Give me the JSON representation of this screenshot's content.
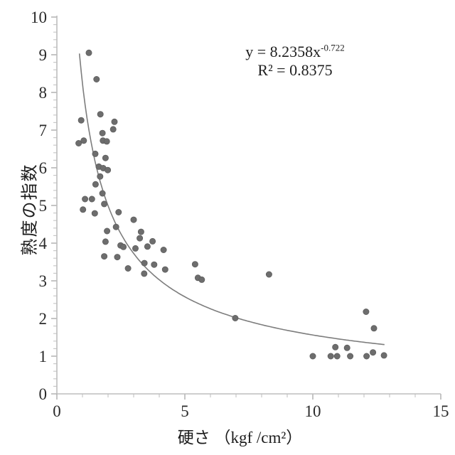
{
  "figure": {
    "background": "#ffffff"
  },
  "chart_data": {
    "type": "scatter",
    "title": "",
    "xlabel": "硬さ （kgf /cm²）",
    "ylabel": "熟度の指数",
    "xlim": [
      0,
      15
    ],
    "ylim": [
      0,
      10
    ],
    "x_ticks": [
      0,
      5,
      10,
      15
    ],
    "y_ticks": [
      0,
      1,
      2,
      3,
      4,
      5,
      6,
      7,
      8,
      9,
      10
    ],
    "x_minor_tick_step": 1,
    "y_minor_tick_step": 0.2,
    "grid": false,
    "legend": false,
    "points": [
      [
        1.25,
        9.05
      ],
      [
        1.55,
        8.35
      ],
      [
        1.7,
        7.42
      ],
      [
        0.95,
        7.26
      ],
      [
        2.25,
        7.22
      ],
      [
        2.2,
        7.02
      ],
      [
        1.78,
        6.92
      ],
      [
        0.85,
        6.65
      ],
      [
        1.05,
        6.72
      ],
      [
        1.8,
        6.72
      ],
      [
        1.95,
        6.7
      ],
      [
        1.5,
        6.37
      ],
      [
        1.9,
        6.26
      ],
      [
        1.64,
        6.03
      ],
      [
        1.81,
        5.99
      ],
      [
        1.99,
        5.94
      ],
      [
        1.69,
        5.77
      ],
      [
        1.51,
        5.56
      ],
      [
        1.78,
        5.32
      ],
      [
        1.1,
        5.17
      ],
      [
        1.37,
        5.17
      ],
      [
        1.85,
        5.04
      ],
      [
        1.02,
        4.89
      ],
      [
        1.48,
        4.79
      ],
      [
        2.41,
        4.82
      ],
      [
        3.0,
        4.62
      ],
      [
        2.31,
        4.43
      ],
      [
        1.96,
        4.32
      ],
      [
        3.29,
        4.3
      ],
      [
        3.24,
        4.13
      ],
      [
        1.9,
        4.04
      ],
      [
        2.49,
        3.94
      ],
      [
        2.6,
        3.9
      ],
      [
        3.07,
        3.86
      ],
      [
        3.54,
        3.91
      ],
      [
        3.74,
        4.05
      ],
      [
        4.17,
        3.82
      ],
      [
        1.85,
        3.65
      ],
      [
        2.36,
        3.63
      ],
      [
        3.42,
        3.47
      ],
      [
        2.78,
        3.33
      ],
      [
        3.41,
        3.19
      ],
      [
        3.8,
        3.43
      ],
      [
        4.23,
        3.3
      ],
      [
        5.4,
        3.44
      ],
      [
        5.51,
        3.08
      ],
      [
        5.66,
        3.03
      ],
      [
        8.29,
        3.17
      ],
      [
        6.97,
        2.01
      ],
      [
        12.08,
        2.18
      ],
      [
        12.39,
        1.74
      ],
      [
        10.88,
        1.24
      ],
      [
        11.34,
        1.22
      ],
      [
        10.0,
        1.0
      ],
      [
        10.7,
        1.0
      ],
      [
        10.95,
        1.0
      ],
      [
        11.46,
        1.0
      ],
      [
        12.1,
        1.0
      ],
      [
        12.35,
        1.1
      ],
      [
        12.78,
        1.02
      ]
    ],
    "trendline": {
      "type": "power",
      "a": 8.2358,
      "b": -0.722,
      "x_start": 0.88,
      "x_end": 12.8
    },
    "annotation": {
      "equation_base": "y = 8.2358x",
      "equation_exponent": "-0.722",
      "r_squared": "R² = 0.8375"
    },
    "colors": {
      "marker_fill": "#6d6d6d",
      "marker_edge": "#5e5e5e",
      "trend": "#7d7d7d",
      "axis": "#bdbdbd",
      "tick_minor": "#c9c9c9",
      "tick_major": "#9e9e9e",
      "text": "#2a2a2a"
    }
  }
}
